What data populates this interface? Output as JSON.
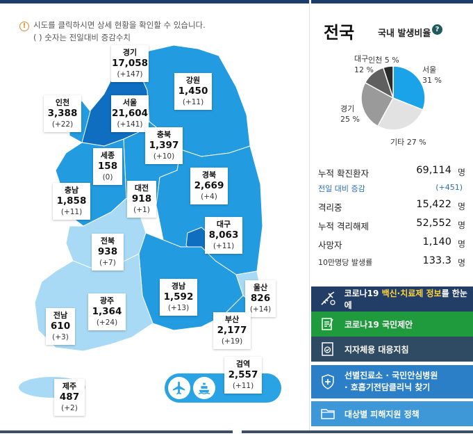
{
  "info": {
    "line1": "시도를 클릭하시면 상세 현황을 확인할 수 있습니다.",
    "line2": "( ) 숫자는 전일대비 증감수치"
  },
  "regions": {
    "gyeonggi": {
      "name": "경기",
      "value": "17,058",
      "inc": "(+147)"
    },
    "gangwon": {
      "name": "강원",
      "value": "1,450",
      "inc": "(+11)"
    },
    "incheon": {
      "name": "인천",
      "value": "3,388",
      "inc": "(+22)"
    },
    "seoul": {
      "name": "서울",
      "value": "21,604",
      "inc": "(+141)"
    },
    "chungbuk": {
      "name": "충북",
      "value": "1,397",
      "inc": "(+10)"
    },
    "sejong": {
      "name": "세종",
      "value": "158",
      "inc": "(0)"
    },
    "gyeongbuk": {
      "name": "경북",
      "value": "2,669",
      "inc": "(+4)"
    },
    "chungnam": {
      "name": "충남",
      "value": "1,858",
      "inc": "(+11)"
    },
    "daejeon": {
      "name": "대전",
      "value": "918",
      "inc": "(+1)"
    },
    "daegu": {
      "name": "대구",
      "value": "8,063",
      "inc": "(+11)"
    },
    "jeonbuk": {
      "name": "전북",
      "value": "938",
      "inc": "(+7)"
    },
    "gyeongnam": {
      "name": "경남",
      "value": "1,592",
      "inc": "(+13)"
    },
    "ulsan": {
      "name": "울산",
      "value": "826",
      "inc": "(+14)"
    },
    "gwangju": {
      "name": "광주",
      "value": "1,364",
      "inc": "(+24)"
    },
    "jeonnam": {
      "name": "전남",
      "value": "610",
      "inc": "(+3)"
    },
    "busan": {
      "name": "부산",
      "value": "2,177",
      "inc": "(+19)"
    },
    "quarantine": {
      "name": "검역",
      "value": "2,557",
      "inc": "(+11)"
    },
    "jeju": {
      "name": "제주",
      "value": "487",
      "inc": "(+2)"
    }
  },
  "transport_icons": [
    "airplane-icon",
    "ship-icon"
  ],
  "summary": {
    "title": "전국",
    "rate_label": "국내 발생비율",
    "help": "?",
    "pie": [
      {
        "name": "서울",
        "pct": "31 %",
        "value": 31,
        "color": "#1aa3e8"
      },
      {
        "name": "기타",
        "pct": "27 %",
        "value": 27,
        "color": "#e2e2e2"
      },
      {
        "name": "경기",
        "pct": "25 %",
        "value": 25,
        "color": "#9a9a9a"
      },
      {
        "name": "대구",
        "pct": "12 %",
        "value": 12,
        "color": "#5f5f5f"
      },
      {
        "name": "인천",
        "pct": "5 %",
        "value": 5,
        "color": "#2b2b2b"
      }
    ],
    "stats": {
      "confirmed_label": "누적 확진환자",
      "confirmed": "69,114",
      "unit": "명",
      "daily_label": "전일 대비 증감",
      "daily": "(+451)",
      "isolated_label": "격리중",
      "isolated": "15,422",
      "released_label": "누적 격리해제",
      "released": "52,552",
      "deaths_label": "사망자",
      "deaths": "1,140",
      "rate_label": "10만명당 발생률",
      "rate": "133.3"
    }
  },
  "buttons": {
    "vaccine_prefix": "코로나19 ",
    "vaccine_hl": "백신·치료제 정보",
    "vaccine_suffix": "를 한눈에",
    "proposal": "코로나19 국민제안",
    "guide": "지자체용 대응지침",
    "clinic_line1": "선별진료소 · 국민안심병원",
    "clinic_line2": "· 호흡기전담클리닉 찾기",
    "support": "대상별 피해지원 정책"
  },
  "colors": {
    "map_dark": "#0f6ec0",
    "map_mid": "#239be0",
    "map_light": "#a8daf5",
    "btn_navy": "#233e66",
    "btn_green": "#1f9a3c",
    "btn_slate": "#2f4a63",
    "btn_blue": "#2b7fc7",
    "btn_light_blue": "#3e97d6"
  }
}
